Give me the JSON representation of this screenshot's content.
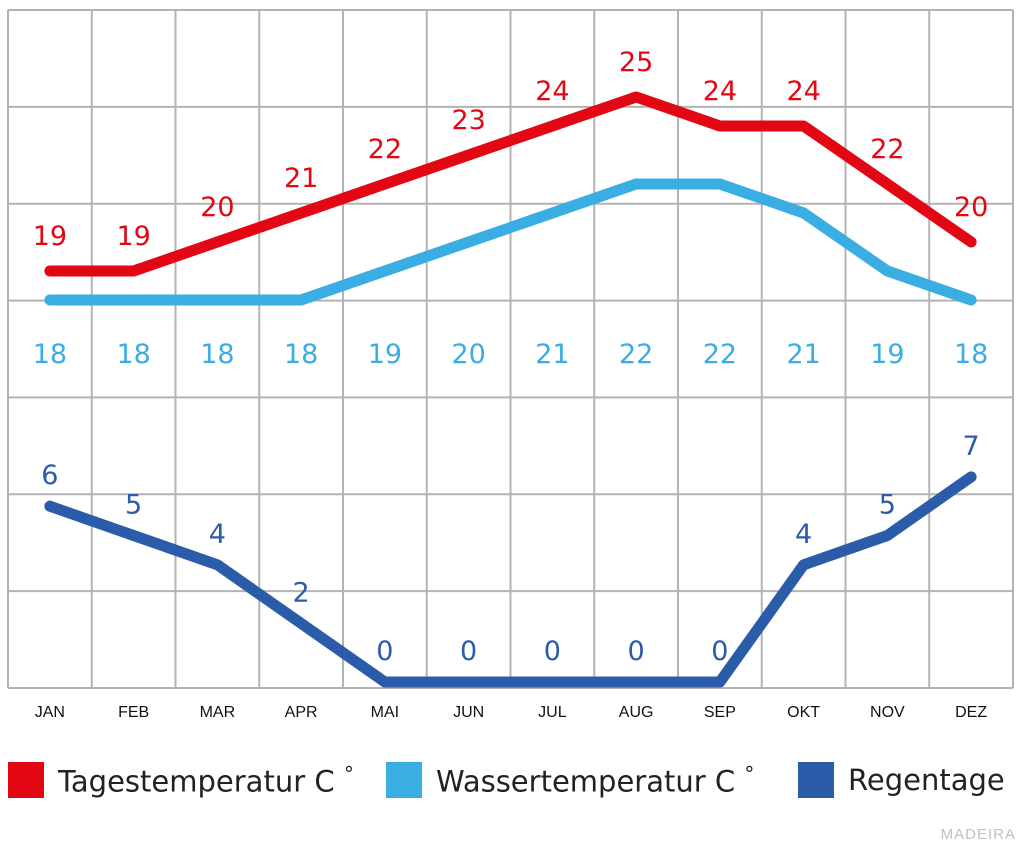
{
  "chart_data": {
    "type": "line",
    "categories": [
      "JAN",
      "FEB",
      "MAR",
      "APR",
      "MAI",
      "JUN",
      "JUL",
      "AUG",
      "SEP",
      "OKT",
      "NOV",
      "DEZ"
    ],
    "series": [
      {
        "name": "Tagestemperatur C°",
        "color": "#e30613",
        "values": [
          19,
          19,
          20,
          21,
          22,
          23,
          24,
          25,
          24,
          24,
          22,
          20
        ]
      },
      {
        "name": "Wassertemperatur C°",
        "color": "#3aaee3",
        "values": [
          18,
          18,
          18,
          18,
          19,
          20,
          21,
          22,
          22,
          21,
          19,
          18
        ]
      },
      {
        "name": "Regentage",
        "color": "#2a5caa",
        "values": [
          6,
          5,
          4,
          2,
          0,
          0,
          0,
          0,
          0,
          4,
          5,
          7
        ]
      }
    ],
    "grid": true,
    "legend_position": "bottom"
  },
  "legend": {
    "temp_label": "Tagestemperatur C",
    "water_label": "Wassertemperatur C",
    "degree": "°",
    "rain_label": "Regentage"
  },
  "footer": {
    "label": "MADEIRA"
  }
}
